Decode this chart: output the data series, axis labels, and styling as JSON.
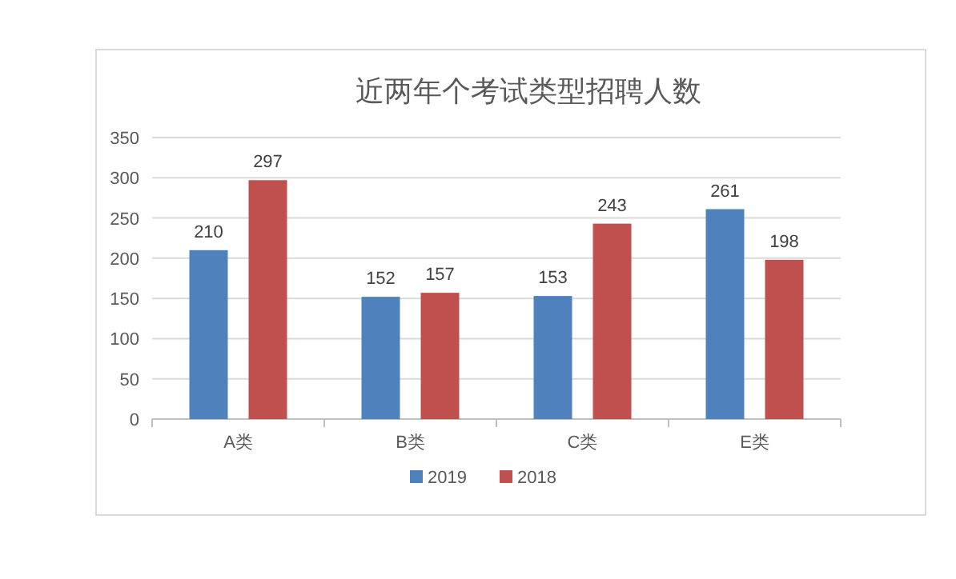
{
  "chart_data": {
    "type": "bar",
    "title": "近两年个考试类型招聘人数",
    "categories": [
      "A类",
      "B类",
      "C类",
      "E类"
    ],
    "series": [
      {
        "name": "2019",
        "color": "#4f81bd",
        "values": [
          210,
          152,
          153,
          261
        ]
      },
      {
        "name": "2018",
        "color": "#c0504d",
        "values": [
          297,
          157,
          243,
          198
        ]
      }
    ],
    "ylim": [
      0,
      350
    ],
    "yticks": [
      0,
      50,
      100,
      150,
      200,
      250,
      300,
      350
    ],
    "grid": "y",
    "legend": "bottom",
    "data_labels": true
  }
}
